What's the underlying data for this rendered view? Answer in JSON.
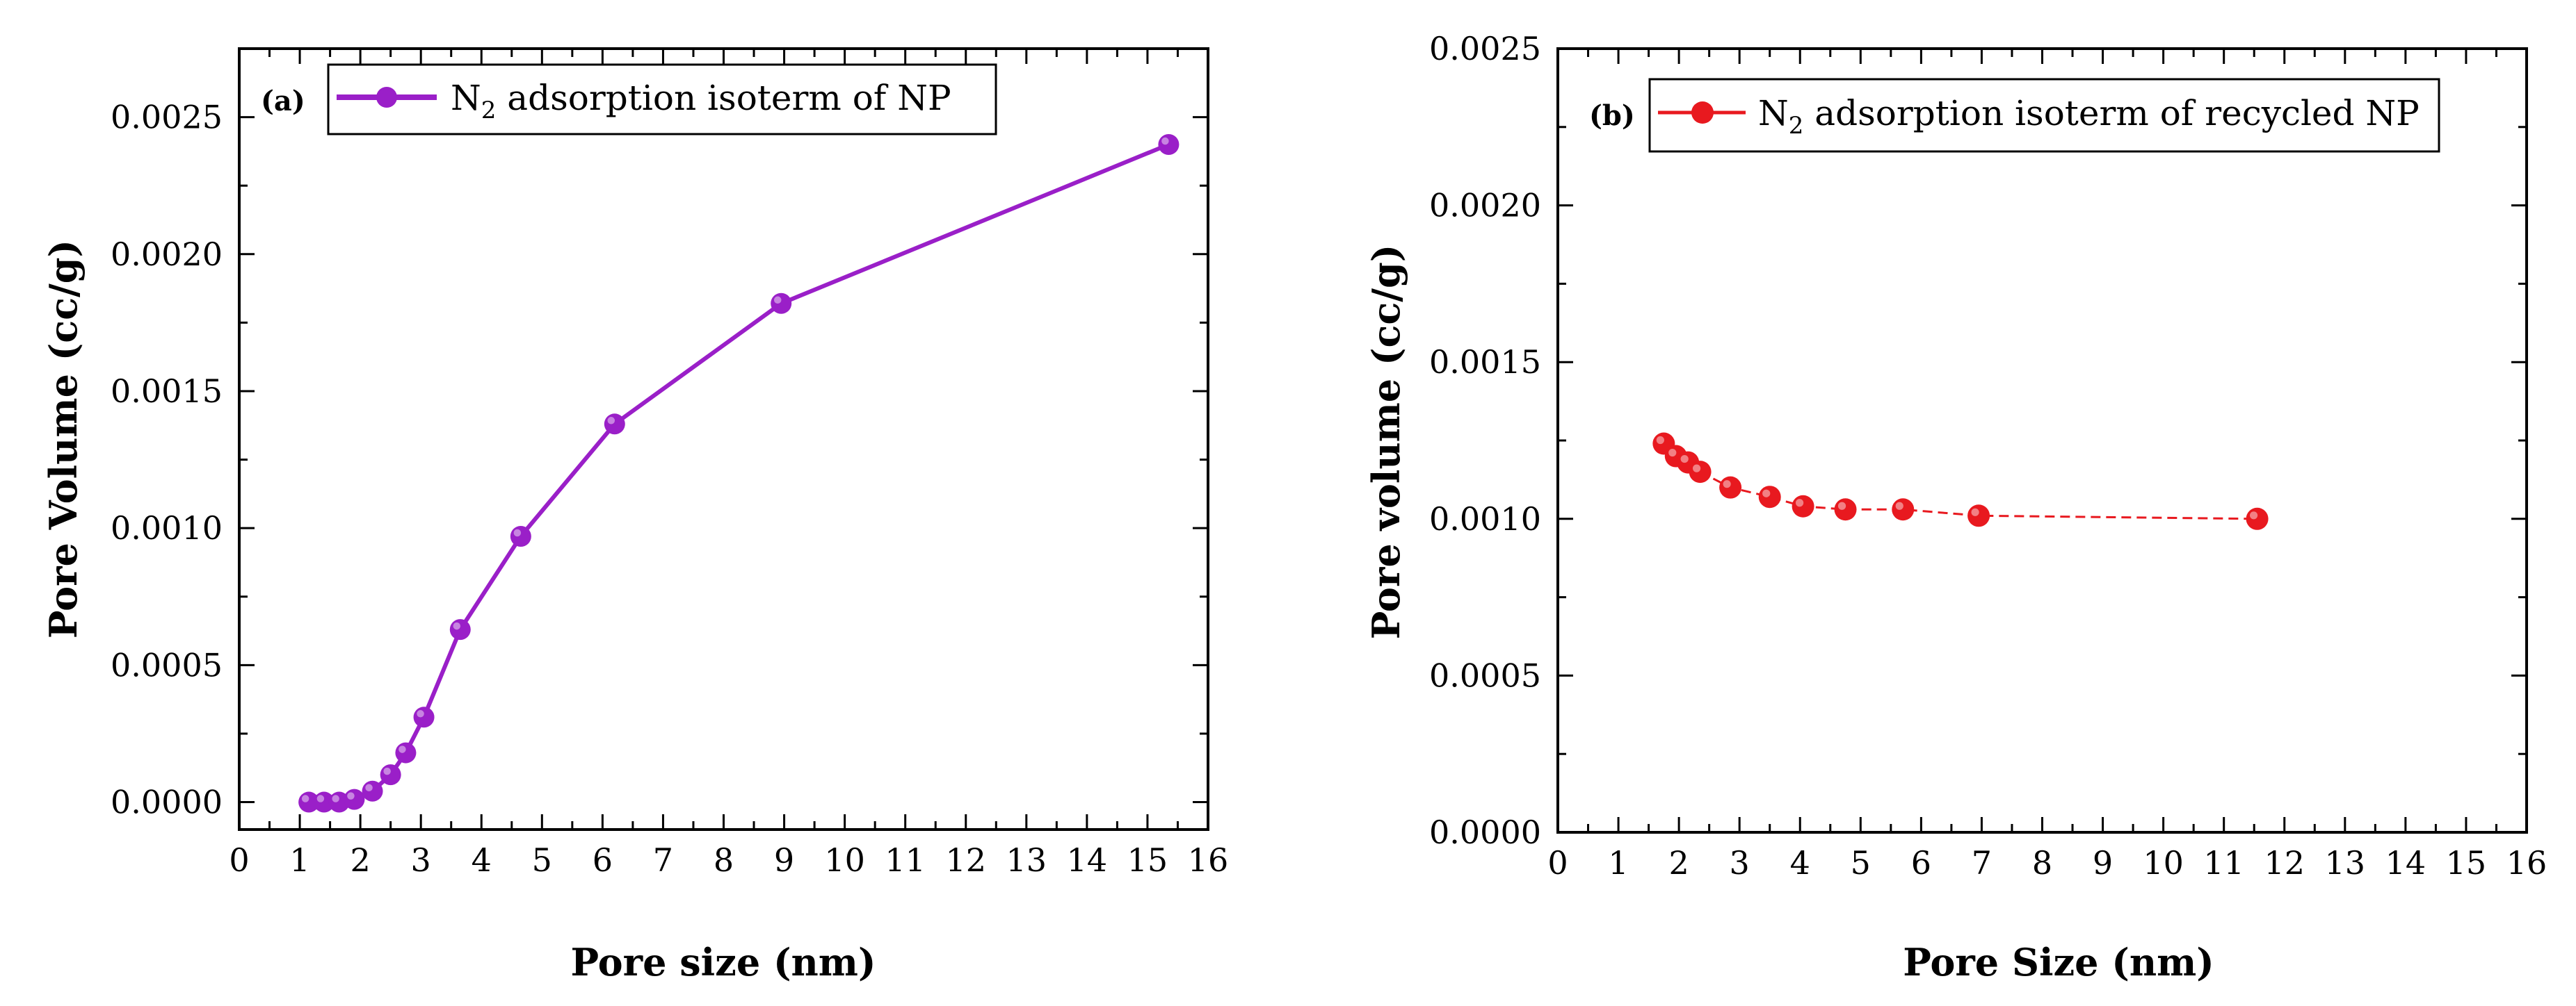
{
  "chart_data": [
    {
      "type": "line",
      "panel_label": "(a)",
      "legend": {
        "prefix": "N",
        "subscript": "2",
        "text": " adsorption isoterm of NP",
        "placement": "top-left"
      },
      "xlabel": "Pore size (nm)",
      "ylabel": "Pore Volume (cc/g)",
      "xlim": [
        0,
        16
      ],
      "ylim": [
        -0.0001,
        0.00275
      ],
      "xticks": [
        0,
        1,
        2,
        3,
        4,
        5,
        6,
        7,
        8,
        9,
        10,
        11,
        12,
        13,
        14,
        15,
        16
      ],
      "yticks": [
        0.0,
        0.0005,
        0.001,
        0.0015,
        0.002,
        0.0025
      ],
      "ytick_labels": [
        "0.0000",
        "0.0005",
        "0.0010",
        "0.0015",
        "0.0020",
        "0.0025"
      ],
      "color": "#9A1FC8",
      "series": [
        {
          "name": "N2 adsorption isoterm of NP",
          "x": [
            1.15,
            1.4,
            1.65,
            1.9,
            2.2,
            2.5,
            2.75,
            3.05,
            3.65,
            4.65,
            6.2,
            8.95,
            15.35
          ],
          "y": [
            0.0,
            0.0,
            0.0,
            1e-05,
            4e-05,
            0.0001,
            0.00018,
            0.00031,
            0.00063,
            0.00097,
            0.00138,
            0.00182,
            0.0024
          ]
        }
      ]
    },
    {
      "type": "line",
      "panel_label": "(b)",
      "legend": {
        "prefix": "N",
        "subscript": "2",
        "text": " adsorption isoterm of recycled NP",
        "placement": "top-left"
      },
      "xlabel": "Pore Size (nm)",
      "ylabel": "Pore volume (cc/g)",
      "xlim": [
        0,
        16
      ],
      "ylim": [
        0,
        0.0025
      ],
      "xticks": [
        0,
        1,
        2,
        3,
        4,
        5,
        6,
        7,
        8,
        9,
        10,
        11,
        12,
        13,
        14,
        15,
        16
      ],
      "yticks": [
        0.0,
        0.0005,
        0.001,
        0.0015,
        0.002,
        0.0025
      ],
      "ytick_labels": [
        "0.0000",
        "0.0005",
        "0.0010",
        "0.0015",
        "0.0020",
        "0.0025"
      ],
      "color": "#E8191F",
      "series": [
        {
          "name": "N2 adsorption isoterm of recycled NP",
          "x": [
            1.75,
            1.95,
            2.15,
            2.35,
            2.85,
            3.5,
            4.05,
            4.75,
            5.7,
            6.95,
            11.55
          ],
          "y": [
            0.00124,
            0.0012,
            0.00118,
            0.00115,
            0.0011,
            0.00107,
            0.00104,
            0.00103,
            0.00103,
            0.00101,
            0.001
          ]
        }
      ]
    }
  ]
}
